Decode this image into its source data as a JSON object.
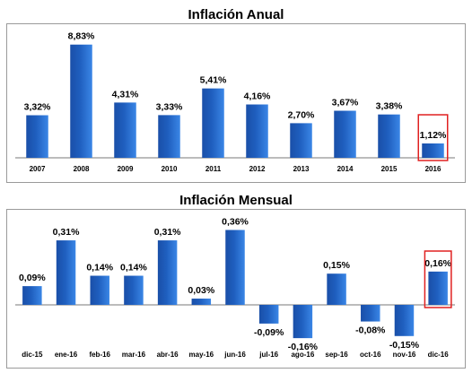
{
  "chart_data": [
    {
      "type": "bar",
      "title": "Inflación Anual",
      "categories": [
        "2007",
        "2008",
        "2009",
        "2010",
        "2011",
        "2012",
        "2013",
        "2014",
        "2015",
        "2016"
      ],
      "values": [
        3.32,
        8.83,
        4.31,
        3.33,
        5.41,
        4.16,
        2.7,
        3.67,
        3.38,
        1.12
      ],
      "labels": [
        "3,32%",
        "8,83%",
        "4,31%",
        "3,33%",
        "5,41%",
        "4,16%",
        "2,70%",
        "3,67%",
        "3,38%",
        "1,12%"
      ],
      "highlighted_category": "2016",
      "highlight_color": "#e02020",
      "bar_color": "#1f5fbf",
      "grid": false,
      "legend": "none"
    },
    {
      "type": "bar",
      "title": "Inflación Mensual",
      "categories": [
        "dic-15",
        "ene-16",
        "feb-16",
        "mar-16",
        "abr-16",
        "may-16",
        "jun-16",
        "jul-16",
        "ago-16",
        "sep-16",
        "oct-16",
        "nov-16",
        "dic-16"
      ],
      "values": [
        0.09,
        0.31,
        0.14,
        0.14,
        0.31,
        0.03,
        0.36,
        -0.09,
        -0.16,
        0.15,
        -0.08,
        -0.15,
        0.16
      ],
      "labels": [
        "0,09%",
        "0,31%",
        "0,14%",
        "0,14%",
        "0,31%",
        "0,03%",
        "0,36%",
        "-0,09%",
        "-0,16%",
        "0,15%",
        "-0,08%",
        "-0,15%",
        "0,16%"
      ],
      "highlighted_category": "dic-16",
      "highlight_color": "#e02020",
      "bar_color": "#1f5fbf",
      "grid": false,
      "legend": "none"
    }
  ]
}
